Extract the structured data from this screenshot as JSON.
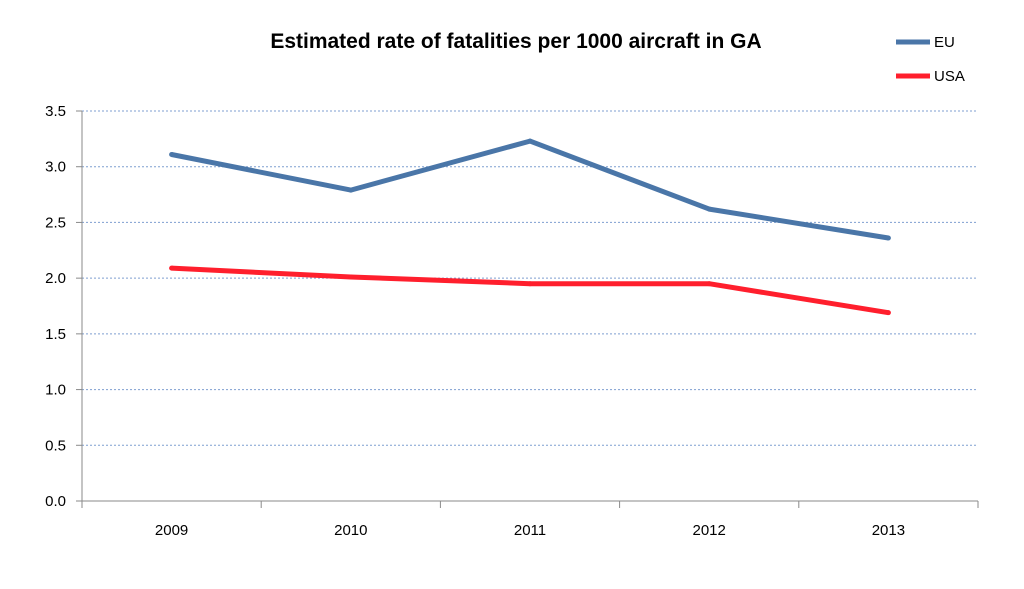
{
  "chart_data": {
    "type": "line",
    "title": "Estimated rate of fatalities per 1000 aircraft in GA",
    "xlabel": "",
    "ylabel": "",
    "categories": [
      "2009",
      "2010",
      "2011",
      "2012",
      "2013"
    ],
    "ylim": [
      0,
      3.5
    ],
    "yticks": [
      "0.0",
      "0.5",
      "1.0",
      "1.5",
      "2.0",
      "2.5",
      "3.0",
      "3.5"
    ],
    "grid": true,
    "legend_position": "top-right",
    "series": [
      {
        "name": "EU",
        "color": "#4a76a8",
        "values": [
          3.11,
          2.79,
          3.23,
          2.62,
          2.36
        ]
      },
      {
        "name": "USA",
        "color": "#ff1f2d",
        "values": [
          2.09,
          2.01,
          1.95,
          1.95,
          1.69
        ]
      }
    ]
  }
}
